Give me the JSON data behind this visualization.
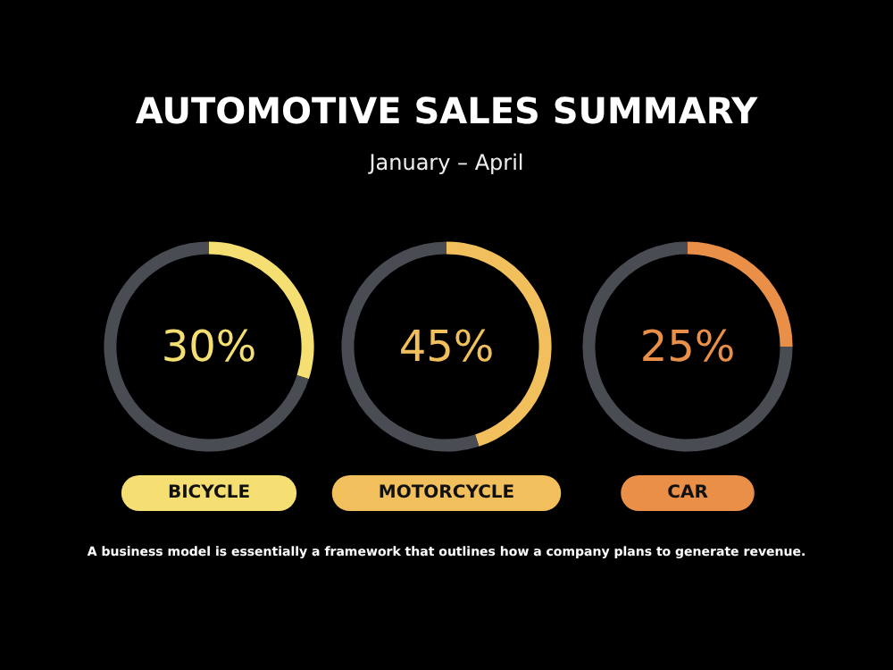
{
  "chart_data": [
    {
      "type": "other",
      "title": "AUTOMOTIVE SALES SUMMARY",
      "subtitle": "January – April",
      "annotations": [
        "A business model is essentially a framework that outlines how a company plans to generate revenue."
      ]
    },
    {
      "type": "donut",
      "title": "BICYCLE",
      "categories": [
        null,
        null
      ],
      "values": [
        30,
        70
      ],
      "colors": [
        "#f5df72",
        "#4a4c54"
      ],
      "annotations": [
        "30%"
      ]
    },
    {
      "type": "donut",
      "title": "MOTORCYCLE",
      "categories": [
        null,
        null
      ],
      "values": [
        45,
        55
      ],
      "colors": [
        "#f1bf5c",
        "#4a4c54"
      ],
      "annotations": [
        "45%"
      ]
    },
    {
      "type": "donut",
      "title": "CAR",
      "categories": [
        null,
        null
      ],
      "values": [
        25,
        75
      ],
      "colors": [
        "#e98f48",
        "#4a4c54"
      ],
      "annotations": [
        "25%"
      ]
    }
  ]
}
